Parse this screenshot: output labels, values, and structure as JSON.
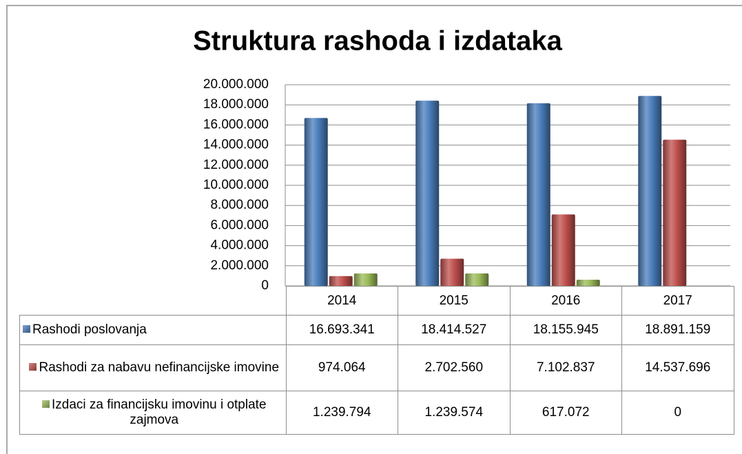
{
  "chart_data": {
    "type": "bar",
    "title": "Struktura rashoda i izdataka",
    "categories": [
      "2014",
      "2015",
      "2016",
      "2017"
    ],
    "series": [
      {
        "name": "Rashodi poslovanja",
        "color": "#4a7ebb",
        "values": [
          16693341,
          18414527,
          18155945,
          18891159
        ],
        "value_labels": [
          "16.693.341",
          "18.414.527",
          "18.155.945",
          "18.891.159"
        ]
      },
      {
        "name": "Rashodi za nabavu nefinancijske imovine",
        "color": "#c0504d",
        "values": [
          974064,
          2702560,
          7102837,
          14537696
        ],
        "value_labels": [
          "974.064",
          "2.702.560",
          "7.102.837",
          "14.537.696"
        ]
      },
      {
        "name": "Izdaci za financijsku imovinu i otplate zajmova",
        "color": "#9bbb59",
        "values": [
          1239794,
          1239574,
          617072,
          0
        ],
        "value_labels": [
          "1.239.794",
          "1.239.574",
          "617.072",
          "0"
        ]
      }
    ],
    "ylim": [
      0,
      20000000
    ],
    "yticks": [
      0,
      {
        "value": 2000000,
        "label": "2.000.000"
      },
      {
        "value": 4000000,
        "label": "4.000.000"
      },
      {
        "value": 6000000,
        "label": "6.000.000"
      },
      {
        "value": 8000000,
        "label": "8.000.000"
      },
      {
        "value": 10000000,
        "label": "10.000.000"
      },
      {
        "value": 12000000,
        "label": "12.000.000"
      },
      {
        "value": 14000000,
        "label": "14.000.000"
      },
      {
        "value": 16000000,
        "label": "16.000.000"
      },
      {
        "value": 18000000,
        "label": "18.000.000"
      },
      {
        "value": 20000000,
        "label": "20.000.000"
      }
    ],
    "grid": true
  }
}
